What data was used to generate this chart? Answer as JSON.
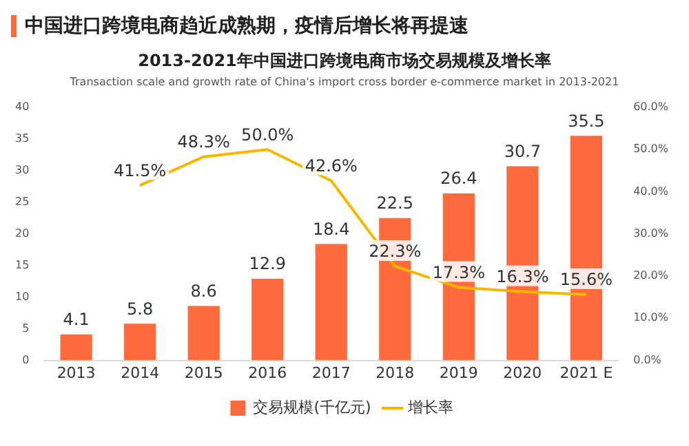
{
  "chart_data": {
    "type": "bar",
    "title": "中国进口跨境电商趋近成熟期，疫情后增长将再提速",
    "subtitle": "2013-2021年中国进口跨境电商市场交易规模及增长率",
    "annotations": [
      "Transaction scale and growth rate of China's import cross border e-commerce market in 2013-2021"
    ],
    "categories": [
      "2013",
      "2014",
      "2015",
      "2016",
      "2017",
      "2018",
      "2019",
      "2020",
      "2021 E"
    ],
    "series": [
      {
        "name": "交易规模(千亿元)",
        "color": "#ff6b3d",
        "values": [
          4.1,
          5.8,
          8.6,
          12.9,
          18.4,
          22.5,
          26.4,
          30.7,
          35.5
        ],
        "value_labels": [
          "4.1",
          "5.8",
          "8.6",
          "12.9",
          "18.4",
          "22.5",
          "26.4",
          "30.7",
          "35.5"
        ]
      },
      {
        "name": "增长率",
        "type": "line",
        "axis": "y2",
        "color": "#f5b800",
        "values": [
          null,
          41.5,
          48.3,
          50.0,
          42.6,
          22.3,
          17.3,
          16.3,
          15.6
        ],
        "value_labels": [
          null,
          "41.5%",
          "48.3%",
          "50.0%",
          "42.6%",
          "22.3%",
          "17.3%",
          "16.3%",
          "15.6%"
        ]
      }
    ],
    "ylim": [
      0,
      40
    ],
    "yticks": [
      0,
      5,
      10,
      15,
      20,
      25,
      30,
      35,
      40
    ],
    "y2lim": [
      0,
      60
    ],
    "y2ticks": [
      {
        "value": 0,
        "label": "0.0%"
      },
      {
        "value": 10,
        "label": "10.0%"
      },
      {
        "value": 20,
        "label": "20.0%"
      },
      {
        "value": 30,
        "label": "30.0%"
      },
      {
        "value": 40,
        "label": "40.0%"
      },
      {
        "value": 50,
        "label": "50.0%"
      },
      {
        "value": 60,
        "label": "60.0%"
      }
    ],
    "grid": false,
    "legend": "bottom",
    "marker": "none",
    "line_style": "solid"
  }
}
